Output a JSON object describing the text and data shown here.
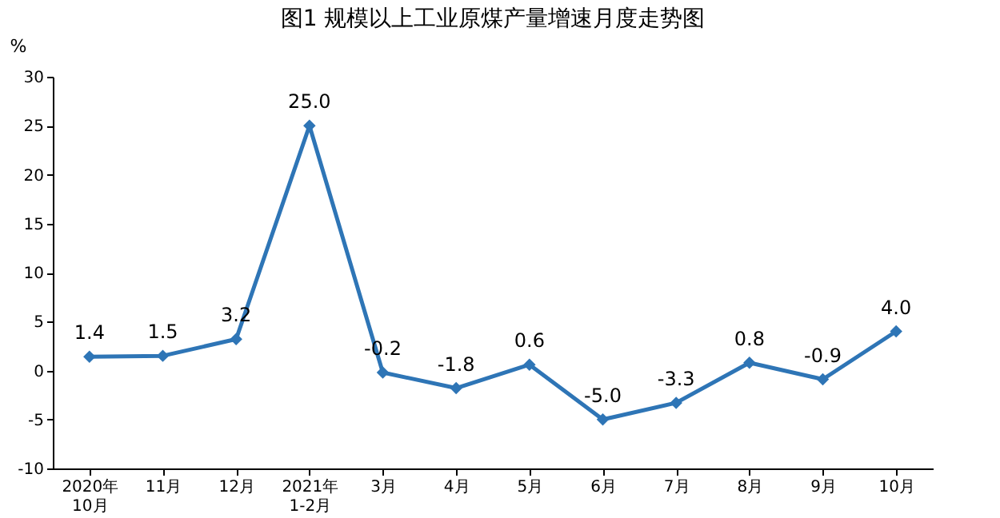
{
  "chart_data": {
    "type": "line",
    "title": "图1  规模以上工业原煤产量增速月度走势图",
    "ylabel": "%",
    "categories": [
      "2020年\n10月",
      "11月",
      "12月",
      "2021年\n1-2月",
      "3月",
      "4月",
      "5月",
      "6月",
      "7月",
      "8月",
      "9月",
      "10月"
    ],
    "series": [
      {
        "color": "#2e75b6",
        "values": [
          1.4,
          1.5,
          3.2,
          25.0,
          -0.2,
          -1.8,
          0.6,
          -5.0,
          -3.3,
          0.8,
          -0.9,
          4.0
        ],
        "value_labels": [
          "1.4",
          "1.5",
          "3.2",
          "25.0",
          "-0.2",
          "-1.8",
          "0.6",
          "-5.0",
          "-3.3",
          "0.8",
          "-0.9",
          "4.0"
        ]
      }
    ],
    "ylim": [
      -10,
      30
    ],
    "yticks": [
      -10,
      -5,
      0,
      5,
      10,
      15,
      20,
      25,
      30
    ],
    "grid": false,
    "legend": false,
    "marker": "diamond",
    "line_style": "solid"
  }
}
